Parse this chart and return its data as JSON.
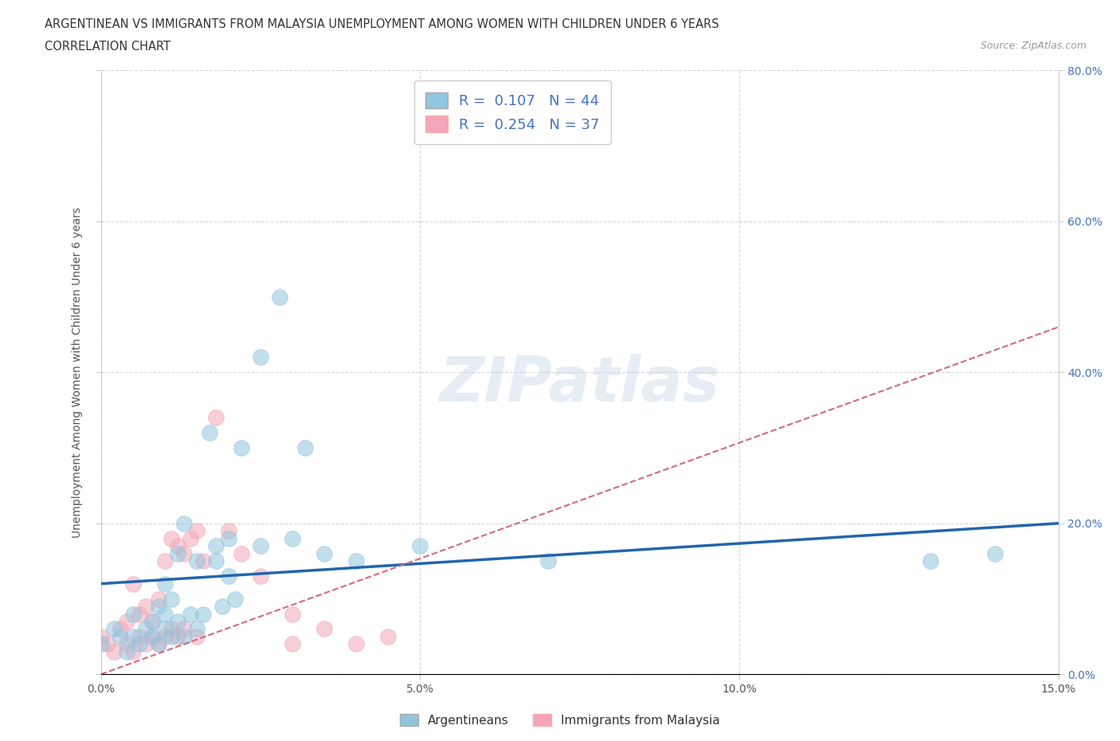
{
  "title_line1": "ARGENTINEAN VS IMMIGRANTS FROM MALAYSIA UNEMPLOYMENT AMONG WOMEN WITH CHILDREN UNDER 6 YEARS",
  "title_line2": "CORRELATION CHART",
  "source": "Source: ZipAtlas.com",
  "ylabel": "Unemployment Among Women with Children Under 6 years",
  "xlim": [
    0.0,
    0.15
  ],
  "ylim": [
    0.0,
    0.8
  ],
  "blue_color": "#92c5de",
  "pink_color": "#f4a6b8",
  "trend_blue": "#2166ac",
  "trend_pink": "#d4697a",
  "right_tick_color": "#4472C4",
  "argentineans_x": [
    0.0,
    0.002,
    0.003,
    0.004,
    0.005,
    0.005,
    0.006,
    0.007,
    0.008,
    0.008,
    0.009,
    0.009,
    0.01,
    0.01,
    0.01,
    0.011,
    0.011,
    0.012,
    0.012,
    0.013,
    0.013,
    0.014,
    0.015,
    0.015,
    0.016,
    0.017,
    0.018,
    0.018,
    0.019,
    0.02,
    0.02,
    0.021,
    0.022,
    0.025,
    0.025,
    0.028,
    0.03,
    0.032,
    0.035,
    0.04,
    0.05,
    0.07,
    0.13,
    0.14
  ],
  "argentineans_y": [
    0.04,
    0.06,
    0.05,
    0.03,
    0.05,
    0.08,
    0.04,
    0.06,
    0.05,
    0.07,
    0.04,
    0.09,
    0.06,
    0.08,
    0.12,
    0.05,
    0.1,
    0.07,
    0.16,
    0.05,
    0.2,
    0.08,
    0.06,
    0.15,
    0.08,
    0.32,
    0.15,
    0.17,
    0.09,
    0.13,
    0.18,
    0.1,
    0.3,
    0.42,
    0.17,
    0.5,
    0.18,
    0.3,
    0.16,
    0.15,
    0.17,
    0.15,
    0.15,
    0.16
  ],
  "malaysia_x": [
    0.0,
    0.001,
    0.002,
    0.003,
    0.004,
    0.004,
    0.005,
    0.005,
    0.006,
    0.006,
    0.007,
    0.007,
    0.008,
    0.008,
    0.009,
    0.009,
    0.01,
    0.01,
    0.011,
    0.011,
    0.012,
    0.012,
    0.013,
    0.013,
    0.014,
    0.015,
    0.015,
    0.016,
    0.018,
    0.02,
    0.022,
    0.025,
    0.03,
    0.03,
    0.035,
    0.04,
    0.045
  ],
  "malaysia_y": [
    0.05,
    0.04,
    0.03,
    0.06,
    0.04,
    0.07,
    0.03,
    0.12,
    0.05,
    0.08,
    0.04,
    0.09,
    0.05,
    0.07,
    0.04,
    0.1,
    0.05,
    0.15,
    0.06,
    0.18,
    0.05,
    0.17,
    0.06,
    0.16,
    0.18,
    0.05,
    0.19,
    0.15,
    0.34,
    0.19,
    0.16,
    0.13,
    0.04,
    0.08,
    0.06,
    0.04,
    0.05
  ],
  "blue_trend_y0": 0.12,
  "blue_trend_y1": 0.2,
  "pink_trend_y0": 0.0,
  "pink_trend_y1": 0.46
}
